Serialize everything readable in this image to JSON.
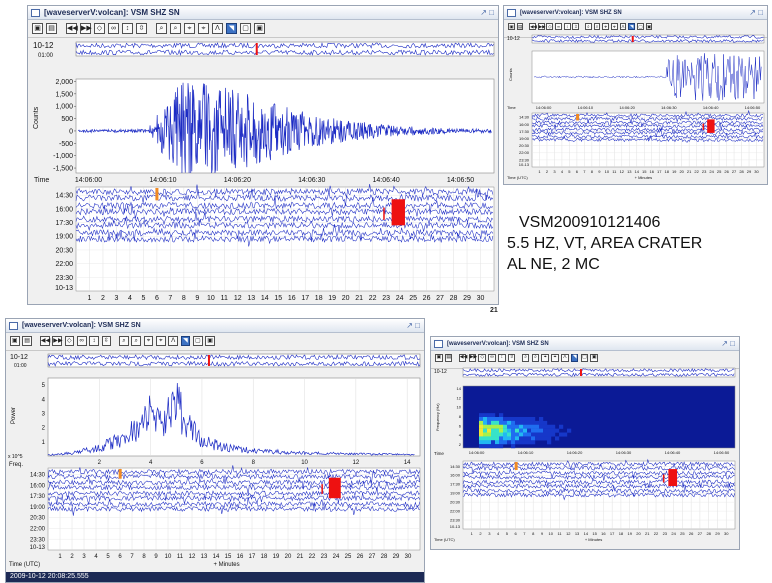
{
  "window_title": "[waveserverV:volcan]: VSM SHZ SN",
  "window_controls": "↗ □",
  "toolbar_buttons": [
    "▣",
    "▤",
    "◀◀",
    "▶▶",
    "◇",
    "∞",
    "↕",
    "⇳",
    "⌕",
    "⌕",
    "⌖",
    "⌖",
    "Λ",
    "◥",
    "▢",
    "▣"
  ],
  "helicorder_top_labels": [
    "10-12",
    "01:00"
  ],
  "helicorder_rows": [
    "14:30",
    "16:00",
    "17:30",
    "19:00",
    "20:30",
    "22:00",
    "23:30"
  ],
  "helicorder_bottom_date": "10-13",
  "helicorder_time_label": "Time (UTC)",
  "helicorder_minutes": [
    "1",
    "2",
    "3",
    "4",
    "5",
    "6",
    "7",
    "8",
    "9",
    "10",
    "11",
    "12",
    "13",
    "14",
    "15",
    "16",
    "17",
    "18",
    "19",
    "20",
    "21",
    "22",
    "23",
    "24",
    "25",
    "26",
    "27",
    "28",
    "29",
    "30"
  ],
  "helicorder_xlabel": "+ Minutes",
  "seismogram": {
    "ylabel": "Counts",
    "yticks": [
      "2,000",
      "1,500",
      "1,000",
      "500",
      "0",
      "-500",
      "-1,000",
      "-1,500"
    ],
    "xlabel": "Time",
    "xticks": [
      "14:06:00",
      "14:06:10",
      "14:06:20",
      "14:06:30",
      "14:06:40",
      "14:06:50"
    ]
  },
  "spectrum": {
    "ylabel": "Power",
    "yticks": [
      "5",
      "4",
      "3",
      "2",
      "1"
    ],
    "exponent": "x 10^5",
    "xlabel": "Freq.",
    "xticks": [
      "2",
      "4",
      "6",
      "8",
      "10",
      "12",
      "14"
    ]
  },
  "spectrogram": {
    "ylabel": "Frequency (Hz)",
    "yticks": [
      "14",
      "12",
      "10",
      "8",
      "6",
      "4",
      "2"
    ],
    "xlabel": "Time",
    "xticks": [
      "14:06:00",
      "14:06:10",
      "14:06:20",
      "14:06:30",
      "14:06:40",
      "14:06:50"
    ]
  },
  "annotation": {
    "line1": "VSM200910121406",
    "line2": "5.5 HZ, VT, AREA CRATER",
    "line3": "AL NE, 2 MC"
  },
  "status_text": "2009-10-12 20:08:25.555",
  "side_fragment": "21",
  "colors": {
    "trace": "#1c2bc4",
    "event": "#ee1111",
    "titlebar_text": "#1c2a55"
  },
  "chart_data": [
    {
      "type": "line",
      "title": "",
      "xlabel": "Time",
      "ylabel": "Counts",
      "ylim": [
        -1700,
        2100
      ],
      "x": [
        "14:06:00",
        "14:06:04",
        "14:06:07",
        "14:06:08",
        "14:06:10",
        "14:06:12",
        "14:06:15",
        "14:06:20",
        "14:06:25",
        "14:06:30",
        "14:06:40",
        "14:06:50",
        "14:06:56"
      ],
      "series": [
        {
          "values": [
            60,
            60,
            80,
            2000,
            1900,
            1500,
            1000,
            600,
            400,
            250,
            150,
            90,
            80
          ]
        }
      ]
    },
    {
      "type": "line",
      "title": "",
      "xlabel": "Freq.",
      "ylabel": "Power",
      "ylim": [
        0,
        5.5
      ],
      "x": [
        0,
        1,
        2,
        3,
        3.5,
        4,
        4.5,
        5,
        5.5,
        6,
        7,
        8,
        10,
        12,
        14
      ],
      "series": [
        {
          "values": [
            0.1,
            0.3,
            0.8,
            1.8,
            2.8,
            4.0,
            3.2,
            5.3,
            2.8,
            1.4,
            0.8,
            0.5,
            0.3,
            0.2,
            0.15
          ]
        }
      ]
    },
    {
      "type": "heatmap",
      "title": "",
      "xlabel": "Time",
      "ylabel": "Frequency (Hz)",
      "x": [
        "14:06:00",
        "14:06:10",
        "14:06:20",
        "14:06:30",
        "14:06:40",
        "14:06:50"
      ],
      "ylim": [
        0,
        15
      ]
    }
  ]
}
